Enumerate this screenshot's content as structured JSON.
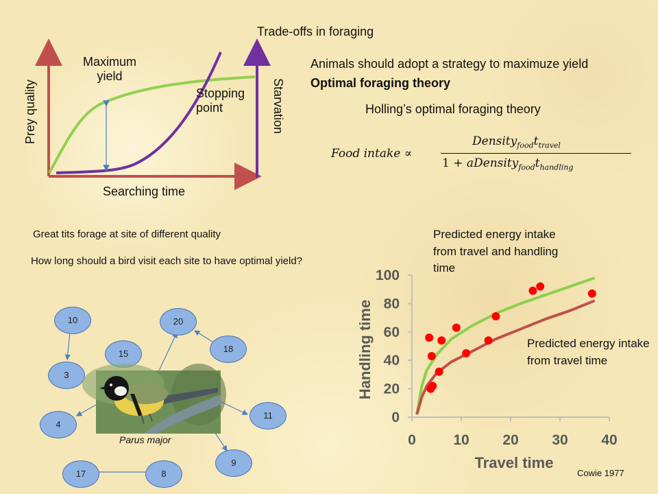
{
  "title": "Trade-offs in foraging",
  "diagram": {
    "y_label": "Prey quality",
    "right_label": "Starvation",
    "x_label": "Searching time",
    "max_yield_label": "Maximum\nyield",
    "stopping_label": "Stopping\npoint",
    "colors": {
      "axis": "#c0504d",
      "gain_curve": "#92d050",
      "starvation_curve": "#7030a0",
      "arrow": "#4f81bd"
    }
  },
  "theory": {
    "line1": "Animals should adopt a strategy to maximuze yield",
    "line2": "Optimal foraging theory",
    "holling": "Holling’s optimal foraging theory",
    "formula": {
      "lhs": "Food intake",
      "prop": "∝",
      "numerator": "Density",
      "num_sub": "food",
      "num_t": "t",
      "num_t_sub": "travel",
      "den_prefix": "1 + ",
      "den_a": "aDensity",
      "den_sub": "food",
      "den_t": "t",
      "den_t_sub": "handling"
    }
  },
  "experiment": {
    "line1": "Great tits forage at site of different  quality",
    "line2": "How long should a bird visit each site to have optimal yield?",
    "species": "Parus major",
    "sites": [
      "10",
      "20",
      "15",
      "18",
      "3",
      "11",
      "4",
      "9",
      "17",
      "8"
    ]
  },
  "chart_annotations": {
    "pred_travel_handling": "Predicted energy intake from travel and handling time",
    "pred_travel": "Predicted energy intake from travel time",
    "citation": "Cowie 1977"
  },
  "chart_data": {
    "type": "scatter",
    "xlabel": "Travel time",
    "ylabel": "Handling time",
    "xlim": [
      0,
      40
    ],
    "ylim": [
      0,
      100
    ],
    "xticks": [
      "0",
      "10",
      "20",
      "30",
      "40"
    ],
    "yticks": [
      "0",
      "20",
      "40",
      "60",
      "80",
      "100"
    ],
    "points": [
      {
        "x": 3.5,
        "y": 56
      },
      {
        "x": 4,
        "y": 43
      },
      {
        "x": 3.8,
        "y": 20
      },
      {
        "x": 4.2,
        "y": 22
      },
      {
        "x": 5.5,
        "y": 32
      },
      {
        "x": 6,
        "y": 54
      },
      {
        "x": 9,
        "y": 63
      },
      {
        "x": 11,
        "y": 45
      },
      {
        "x": 15.5,
        "y": 54
      },
      {
        "x": 17,
        "y": 71
      },
      {
        "x": 24.5,
        "y": 89
      },
      {
        "x": 26,
        "y": 92
      },
      {
        "x": 36.5,
        "y": 87
      }
    ],
    "series": [
      {
        "x": [
          1,
          2,
          3,
          5,
          8,
          12,
          17,
          22,
          27,
          32,
          37
        ],
        "y": [
          2,
          22,
          33,
          44,
          55,
          64,
          73,
          80,
          86,
          92,
          98
        ]
      },
      {
        "x": [
          1,
          2,
          3,
          5,
          8,
          12,
          17,
          22,
          27,
          32,
          37
        ],
        "y": [
          2,
          14,
          22,
          31,
          39,
          46,
          55,
          62,
          69,
          75,
          82
        ]
      }
    ],
    "colors": {
      "points": "#ff0000",
      "series_0": "#8ccf4d",
      "series_1": "#c0504d",
      "axis": "#bfbfbf",
      "text": "#595959"
    }
  }
}
